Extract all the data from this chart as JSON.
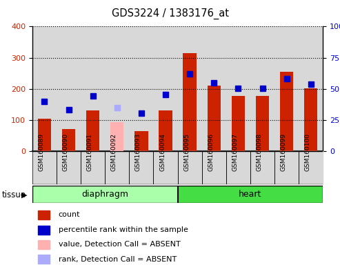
{
  "title": "GDS3224 / 1383176_at",
  "samples": [
    "GSM160089",
    "GSM160090",
    "GSM160091",
    "GSM160092",
    "GSM160093",
    "GSM160094",
    "GSM160095",
    "GSM160096",
    "GSM160097",
    "GSM160098",
    "GSM160099",
    "GSM160100"
  ],
  "count_values": [
    105,
    70,
    130,
    null,
    65,
    130,
    315,
    210,
    178,
    178,
    255,
    202
  ],
  "absent_value": [
    null,
    null,
    null,
    93,
    null,
    null,
    null,
    null,
    null,
    null,
    null,
    null
  ],
  "rank_values": [
    160,
    132,
    178,
    null,
    122,
    182,
    248,
    220,
    202,
    202,
    232,
    214
  ],
  "absent_rank": [
    null,
    null,
    null,
    140,
    null,
    null,
    null,
    null,
    null,
    null,
    null,
    null
  ],
  "left_ylim": [
    0,
    400
  ],
  "right_ylim": [
    0,
    100
  ],
  "left_yticks": [
    0,
    100,
    200,
    300,
    400
  ],
  "right_yticks": [
    0,
    25,
    50,
    75,
    100
  ],
  "right_yticklabels": [
    "0",
    "25",
    "50",
    "75",
    "100%"
  ],
  "bar_color": "#cc2200",
  "absent_bar_color": "#ffb0b0",
  "rank_color": "#0000cc",
  "absent_rank_color": "#aaaaff",
  "diaphragm_color": "#aaffaa",
  "heart_color": "#44dd44",
  "col_bg": "#d8d8d8",
  "plot_bg": "#ffffff",
  "legend_items": [
    {
      "label": "count",
      "color": "#cc2200"
    },
    {
      "label": "percentile rank within the sample",
      "color": "#0000cc"
    },
    {
      "label": "value, Detection Call = ABSENT",
      "color": "#ffb0b0"
    },
    {
      "label": "rank, Detection Call = ABSENT",
      "color": "#aaaaff"
    }
  ],
  "bar_width": 0.55,
  "rank_marker_size": 6,
  "grid_color": "#000000",
  "tissue_label": "tissue",
  "diaphragm_label": "diaphragm",
  "heart_label": "heart"
}
